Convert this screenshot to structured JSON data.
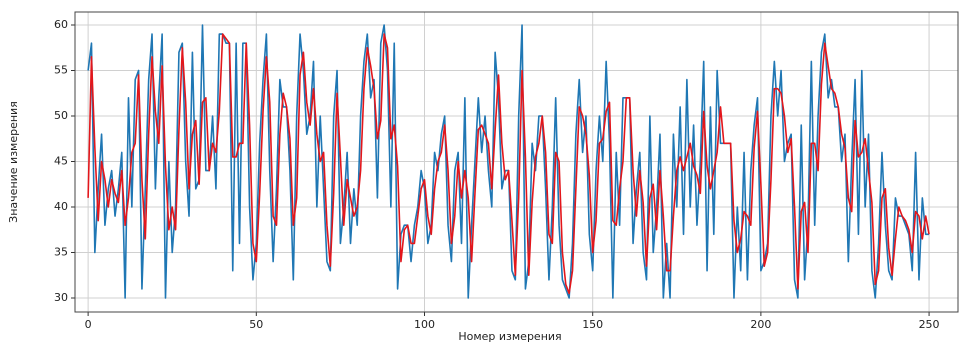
{
  "chart_data": {
    "type": "line",
    "x_label": "Номер измерения",
    "y_label": "Значение измерения",
    "x": [
      0,
      1,
      2,
      3,
      4,
      5,
      6,
      7,
      8,
      9,
      10,
      11,
      12,
      13,
      14,
      15,
      16,
      17,
      18,
      19,
      20,
      21,
      22,
      23,
      24,
      25,
      26,
      27,
      28,
      29,
      30,
      31,
      32,
      33,
      34,
      35,
      36,
      37,
      38,
      39,
      40,
      41,
      42,
      43,
      44,
      45,
      46,
      47,
      48,
      49,
      50,
      51,
      52,
      53,
      54,
      55,
      56,
      57,
      58,
      59,
      60,
      61,
      62,
      63,
      64,
      65,
      66,
      67,
      68,
      69,
      70,
      71,
      72,
      73,
      74,
      75,
      76,
      77,
      78,
      79,
      80,
      81,
      82,
      83,
      84,
      85,
      86,
      87,
      88,
      89,
      90,
      91,
      92,
      93,
      94,
      95,
      96,
      97,
      98,
      99,
      100,
      101,
      102,
      103,
      104,
      105,
      106,
      107,
      108,
      109,
      110,
      111,
      112,
      113,
      114,
      115,
      116,
      117,
      118,
      119,
      120,
      121,
      122,
      123,
      124,
      125,
      126,
      127,
      128,
      129,
      130,
      131,
      132,
      133,
      134,
      135,
      136,
      137,
      138,
      139,
      140,
      141,
      142,
      143,
      144,
      145,
      146,
      147,
      148,
      149,
      150,
      151,
      152,
      153,
      154,
      155,
      156,
      157,
      158,
      159,
      160,
      161,
      162,
      163,
      164,
      165,
      166,
      167,
      168,
      169,
      170,
      171,
      172,
      173,
      174,
      175,
      176,
      177,
      178,
      179,
      180,
      181,
      182,
      183,
      184,
      185,
      186,
      187,
      188,
      189,
      190,
      191,
      192,
      193,
      194,
      195,
      196,
      197,
      198,
      199,
      200,
      201,
      202,
      203,
      204,
      205,
      206,
      207,
      208,
      209,
      210,
      211,
      212,
      213,
      214,
      215,
      216,
      217,
      218,
      219,
      220,
      221,
      222,
      223,
      224,
      225,
      226,
      227,
      228,
      229,
      230,
      231,
      232,
      233,
      234,
      235,
      236,
      237,
      238,
      239,
      240,
      241,
      242,
      243,
      244,
      245,
      246,
      247,
      248,
      249,
      250
    ],
    "series": [
      {
        "color": "#1f77b4",
        "values": [
          55,
          58,
          35,
          42,
          48,
          38,
          42,
          44,
          39,
          42,
          46,
          30,
          52,
          40,
          54,
          55,
          31,
          42,
          54,
          59,
          42,
          52,
          59,
          30,
          45,
          35,
          40,
          57,
          58,
          45,
          39,
          57,
          42,
          43,
          60,
          44,
          44,
          50,
          42,
          59,
          59,
          58,
          58,
          33,
          58,
          36,
          58,
          58,
          40,
          32,
          36,
          47,
          54,
          59,
          44,
          34,
          42,
          54,
          51,
          51,
          44,
          32,
          50,
          59,
          55,
          48,
          50,
          56,
          40,
          50,
          42,
          34,
          33,
          50,
          55,
          36,
          40,
          46,
          36,
          42,
          38,
          50,
          56,
          59,
          52,
          54,
          41,
          58,
          60,
          55,
          40,
          58,
          31,
          37,
          38,
          38,
          34,
          38,
          40,
          44,
          42,
          36,
          38,
          46,
          44,
          48,
          50,
          38,
          34,
          44,
          46,
          36,
          52,
          30,
          38,
          45,
          52,
          46,
          50,
          44,
          40,
          57,
          52,
          42,
          44,
          44,
          33,
          32,
          50,
          60,
          31,
          34,
          47,
          44,
          50,
          50,
          42,
          32,
          40,
          52,
          38,
          32,
          31,
          30,
          36,
          48,
          54,
          46,
          50,
          37,
          33,
          44,
          50,
          45,
          56,
          47,
          30,
          46,
          38,
          52,
          52,
          52,
          36,
          42,
          46,
          35,
          32,
          50,
          35,
          40,
          48,
          30,
          36,
          30,
          48,
          40,
          51,
          37,
          54,
          40,
          49,
          38,
          45,
          56,
          33,
          51,
          37,
          55,
          47,
          47,
          47,
          47,
          30,
          40,
          33,
          46,
          32,
          44,
          49,
          52,
          33,
          34,
          36,
          50,
          56,
          50,
          55,
          45,
          47,
          48,
          32,
          30,
          49,
          32,
          38,
          56,
          38,
          50,
          57,
          59,
          52,
          54,
          51,
          51,
          45,
          48,
          34,
          45,
          54,
          37,
          55,
          40,
          48,
          33,
          30,
          36,
          46,
          38,
          33,
          32,
          41,
          39,
          39,
          38,
          37,
          33,
          46,
          32,
          41,
          37,
          37
        ]
      },
      {
        "color": "#e3161b",
        "values": [
          41,
          56.5,
          46.5,
          38.5,
          45,
          43,
          40,
          43,
          41.5,
          40.5,
          44,
          38,
          41,
          46,
          47,
          54.5,
          43,
          36.5,
          48,
          56.5,
          50.5,
          47,
          55.5,
          44.5,
          37.5,
          40,
          37.5,
          48.5,
          57.5,
          51.5,
          42,
          48,
          49.5,
          42.5,
          51.5,
          52,
          44,
          47,
          46,
          50.5,
          59,
          58.5,
          58,
          45.5,
          45.5,
          47,
          47,
          58,
          49,
          36,
          34,
          41.5,
          50.5,
          56.5,
          51.5,
          39,
          38,
          48,
          52.5,
          51,
          47.5,
          38,
          41,
          54.5,
          57,
          51.5,
          49,
          53,
          48,
          45,
          46,
          38,
          33.5,
          41.5,
          52.5,
          45.5,
          38,
          43,
          41,
          39,
          40,
          44,
          53,
          57.5,
          55.5,
          53,
          47.5,
          49.5,
          59,
          57.5,
          47.5,
          49,
          44.5,
          34,
          37.5,
          38,
          36,
          36,
          39,
          42,
          43,
          39,
          37,
          42,
          45,
          46,
          49,
          44,
          36,
          39,
          45,
          41,
          44,
          41,
          34,
          41.5,
          48.5,
          49,
          48,
          47,
          42,
          48.5,
          54.5,
          47,
          43,
          44,
          38.5,
          32.5,
          41,
          55,
          45.5,
          32.5,
          40.5,
          45.5,
          47,
          50,
          46,
          37,
          36,
          46,
          45,
          35,
          31.5,
          30.5,
          33,
          42,
          51,
          50,
          48,
          43.5,
          35,
          38.5,
          47,
          47.5,
          50.5,
          51.5,
          38.5,
          38,
          42,
          45,
          52,
          52,
          44,
          39,
          44,
          40.5,
          33.5,
          41,
          42.5,
          37.5,
          44,
          39,
          33,
          33,
          39,
          44,
          45.5,
          44,
          45.5,
          47,
          44.5,
          43.5,
          41.5,
          50.5,
          44.5,
          42,
          44,
          46,
          51,
          47,
          47,
          47,
          38.5,
          35,
          36.5,
          39.5,
          39,
          38,
          46.5,
          50.5,
          42.5,
          33.5,
          35,
          43,
          53,
          53,
          52.5,
          50,
          46,
          47.5,
          40,
          31,
          39.5,
          40.5,
          35,
          47,
          47,
          44,
          53.5,
          58,
          55.5,
          53,
          52.5,
          51,
          48,
          46.5,
          41,
          39.5,
          49.5,
          45.5,
          46,
          47.5,
          44,
          40.5,
          31.5,
          33,
          41,
          42,
          35.5,
          32.5,
          36.5,
          40,
          39,
          38.5,
          37.5,
          35,
          39.5,
          39,
          36.5,
          39,
          37
        ]
      }
    ],
    "xlim": [
      -3.9,
      258.6
    ],
    "ylim": [
      28.46,
      61.43
    ],
    "xticks": [
      0,
      50,
      100,
      150,
      200,
      250
    ],
    "yticks": [
      30,
      35,
      40,
      45,
      50,
      55,
      60
    ],
    "grid": true
  }
}
